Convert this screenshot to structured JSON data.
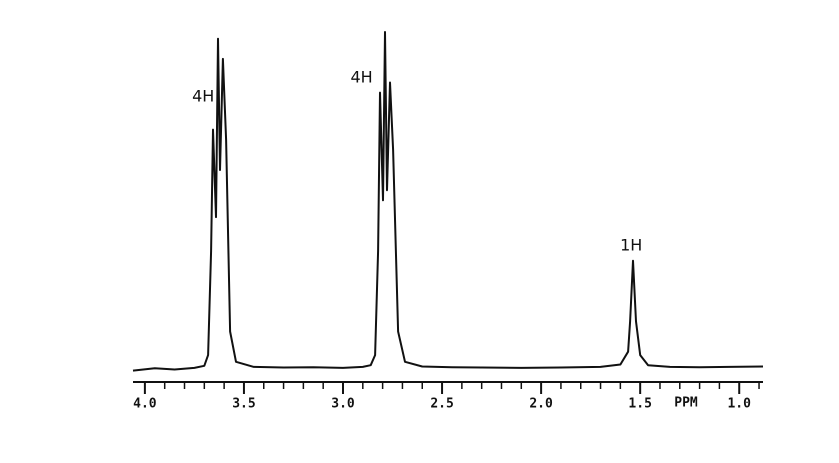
{
  "chart_data": {
    "type": "line",
    "x_label": "PPM",
    "annotations": [
      {
        "text": "4H",
        "x": 3.63
      },
      {
        "text": "4H",
        "x": 2.79
      },
      {
        "text": "1H",
        "x": 1.54
      }
    ],
    "x": [
      4.06,
      3.95,
      3.85,
      3.75,
      3.7,
      3.681,
      3.666,
      3.656,
      3.641,
      3.631,
      3.621,
      3.606,
      3.59,
      3.57,
      3.54,
      3.45,
      3.3,
      3.15,
      3.0,
      2.9,
      2.86,
      2.838,
      2.823,
      2.813,
      2.798,
      2.788,
      2.778,
      2.763,
      2.747,
      2.722,
      2.687,
      2.6,
      2.45,
      2.3,
      2.1,
      1.9,
      1.7,
      1.6,
      1.561,
      1.551,
      1.536,
      1.521,
      1.5,
      1.46,
      1.35,
      1.2,
      1.05,
      0.88
    ],
    "values": [
      -0.6,
      0.1,
      -0.3,
      0.2,
      0.8,
      4,
      35,
      71,
      45,
      98,
      59,
      92,
      68,
      11,
      2,
      0.5,
      0.3,
      0.4,
      0.2,
      0.5,
      1,
      4,
      35,
      82,
      50,
      100,
      53,
      85,
      65,
      11,
      2,
      0.6,
      0.4,
      0.3,
      0.2,
      0.3,
      0.5,
      1.2,
      5,
      14,
      32,
      14,
      4,
      1,
      0.5,
      0.4,
      0.5,
      0.6
    ],
    "color": "#111111",
    "xlim": [
      4.06,
      0.88
    ],
    "ylim": [
      -4,
      100
    ],
    "xticks": [
      {
        "value": 4,
        "label": "4.0"
      },
      {
        "value": 3.5,
        "label": "3.5"
      },
      {
        "value": 3,
        "label": "3.0"
      },
      {
        "value": 2.5,
        "label": "2.5"
      },
      {
        "value": 2,
        "label": "2.0"
      },
      {
        "value": 1.5,
        "label": "1.5"
      },
      {
        "value": 1,
        "label": "1.0"
      }
    ],
    "xminorticks": [
      3.9,
      3.8,
      3.7,
      3.6,
      3.4,
      3.3,
      3.2,
      3.1,
      2.9,
      2.8,
      2.7,
      2.6,
      2.4,
      2.3,
      2.2,
      2.1,
      1.9,
      1.8,
      1.7,
      1.6,
      1.4,
      1.3,
      1.2,
      1.1,
      0.9
    ]
  }
}
